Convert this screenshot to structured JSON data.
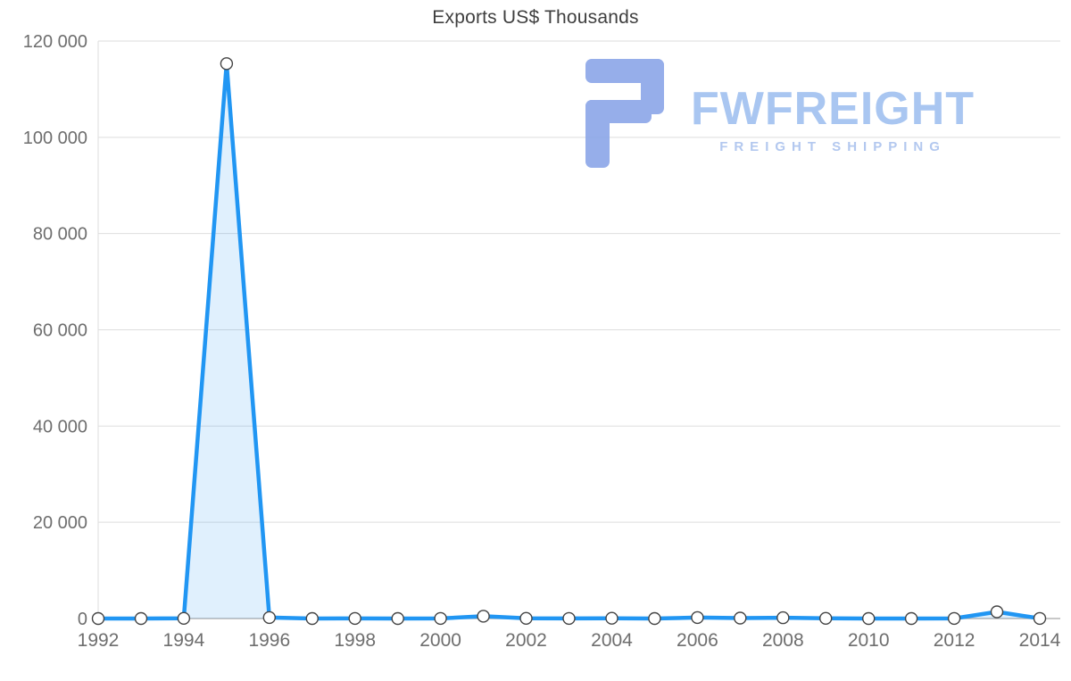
{
  "chart_data": {
    "type": "area",
    "title": "Exports US$ Thousands",
    "xlabel": "",
    "ylabel": "",
    "x": [
      1992,
      1993,
      1994,
      1995,
      1996,
      1997,
      1998,
      1999,
      2000,
      2001,
      2002,
      2003,
      2004,
      2005,
      2006,
      2007,
      2008,
      2009,
      2010,
      2011,
      2012,
      2013,
      2014
    ],
    "values": [
      9,
      0,
      30,
      115300,
      200,
      0,
      11,
      0,
      16,
      480,
      43,
      16,
      61,
      8,
      203,
      91,
      170,
      38,
      7,
      9,
      12,
      1400,
      23
    ],
    "ylim": [
      0,
      120000
    ],
    "grid": true,
    "legend": "none",
    "y_ticks": [
      {
        "value": 0,
        "label": "0"
      },
      {
        "value": 20000,
        "label": "20 000"
      },
      {
        "value": 40000,
        "label": "40 000"
      },
      {
        "value": 60000,
        "label": "60 000"
      },
      {
        "value": 80000,
        "label": "80 000"
      },
      {
        "value": 100000,
        "label": "100 000"
      },
      {
        "value": 120000,
        "label": "120 000"
      }
    ],
    "x_tick_labels": [
      "1992",
      "1994",
      "1996",
      "1998",
      "2000",
      "2002",
      "2004",
      "2006",
      "2008",
      "2010",
      "2012",
      "2014"
    ],
    "line_color": "#2196f3",
    "fill_color": "rgba(33,150,243,0.14)",
    "marker_fill": "#ffffff",
    "marker_stroke": "#444444",
    "grid_color": "#dedede",
    "axis_color": "#b5b5b5",
    "tick_label_color": "#6e6e6e"
  },
  "watermark": {
    "brand": "FWFREIGHT",
    "tagline": "FREIGHT SHIPPING",
    "icon_color": "#8ba6e8"
  }
}
